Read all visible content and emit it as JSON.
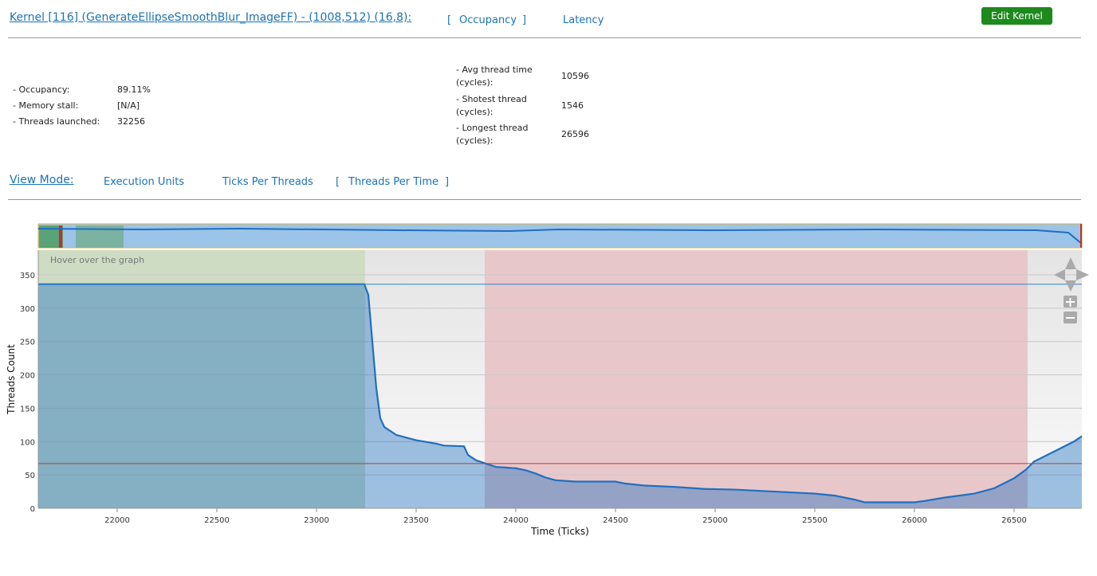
{
  "header": {
    "kernel_link": "Kernel [116] (GenerateEllipseSmoothBlur_ImageFF) - (1008,512) (16,8):",
    "bracket_open": "[",
    "bracket_close": "]",
    "tabs": [
      "Occupancy",
      "Latency"
    ],
    "edit_button": "Edit Kernel"
  },
  "stats": {
    "left": [
      {
        "label": "- Occupancy:",
        "value": "89.11%"
      },
      {
        "label": "- Memory stall:",
        "value": "[N/A]"
      },
      {
        "label": "- Threads launched:",
        "value": "32256"
      }
    ],
    "right": [
      {
        "label": "- Avg thread time (cycles):",
        "value": "10596"
      },
      {
        "label": "- Shotest thread (cycles):",
        "value": "1546"
      },
      {
        "label": "- Longest thread (cycles):",
        "value": "26596"
      }
    ]
  },
  "view_mode": {
    "label": "View Mode:",
    "options": [
      "Execution Units",
      "Ticks Per Threads",
      "Threads Per Time"
    ]
  },
  "chart_data": {
    "type": "area",
    "hover_text": "Hover over the graph",
    "xlabel": "Time (Ticks)",
    "ylabel": "Threads Count",
    "xlim": [
      21604,
      26840
    ],
    "ylim": [
      0,
      387
    ],
    "xticks": [
      22000,
      22500,
      23000,
      23500,
      24000,
      24500,
      25000,
      25500,
      26000,
      26500
    ],
    "yticks": [
      0,
      50,
      100,
      150,
      200,
      250,
      300,
      350
    ],
    "grid": true,
    "regions": [
      {
        "start": 21604,
        "end": 23244,
        "color": "#cfdcc4"
      },
      {
        "start": 23844,
        "end": 26568,
        "color": "#e8c7cb"
      }
    ],
    "reference_lines": [
      {
        "value": 336,
        "color": "#2a86d0"
      },
      {
        "value": 67,
        "color": "#c0392b"
      }
    ],
    "series": [
      {
        "color": "#1f6fbf",
        "x": [
          21604,
          23240,
          23260,
          23280,
          23300,
          23320,
          23340,
          23400,
          23500,
          23600,
          23640,
          23740,
          23760,
          23800,
          23850,
          23900,
          24000,
          24050,
          24100,
          24150,
          24200,
          24300,
          24500,
          24550,
          24650,
          24800,
          24950,
          25100,
          25300,
          25500,
          25600,
          25700,
          25750,
          25850,
          26000,
          26050,
          26150,
          26300,
          26400,
          26500,
          26560,
          26600,
          26700,
          26800,
          26840
        ],
        "values": [
          336,
          336,
          320,
          250,
          180,
          135,
          122,
          110,
          102,
          97,
          94,
          93,
          80,
          72,
          67,
          62,
          60,
          57,
          52,
          46,
          42,
          40,
          40,
          37,
          34,
          32,
          29,
          28,
          25,
          22,
          19,
          13,
          9,
          9,
          9,
          11,
          16,
          22,
          30,
          45,
          58,
          70,
          85,
          100,
          108
        ]
      }
    ]
  }
}
